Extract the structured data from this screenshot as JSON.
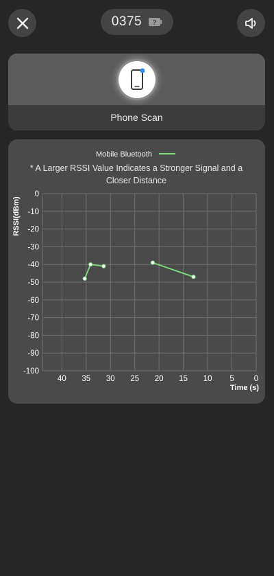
{
  "topbar": {
    "device_code": "0375",
    "badge": "?",
    "close_icon": "close-icon",
    "sound_icon": "speaker-icon"
  },
  "scan": {
    "label": "Phone Scan",
    "icon": "phone-icon"
  },
  "chart_data": {
    "type": "line",
    "legend": {
      "label": "Mobile Bluetooth",
      "position": "top-center"
    },
    "note_line1": "* A Larger RSSI Value Indicates a Stronger Signal and a",
    "note_line2": "Closer Distance",
    "ylabel": "RSSI(dBm)",
    "xlabel": "Time (s)",
    "ylim": [
      -100,
      0
    ],
    "xlim": [
      44,
      0
    ],
    "x_reversed": true,
    "grid": true,
    "yticks": [
      0,
      -10,
      -20,
      -30,
      -40,
      -50,
      -60,
      -70,
      -80,
      -90,
      -100
    ],
    "xticks": [
      40,
      35,
      30,
      25,
      20,
      15,
      10,
      5,
      0
    ],
    "series": [
      {
        "name": "Mobile Bluetooth",
        "color": "#7ee07e",
        "segments": [
          [
            {
              "x": 35.3,
              "y": -48
            },
            {
              "x": 34.1,
              "y": -40
            },
            {
              "x": 31.4,
              "y": -41
            }
          ],
          [
            {
              "x": 21.3,
              "y": -39
            },
            {
              "x": 12.9,
              "y": -47
            }
          ]
        ]
      }
    ]
  }
}
